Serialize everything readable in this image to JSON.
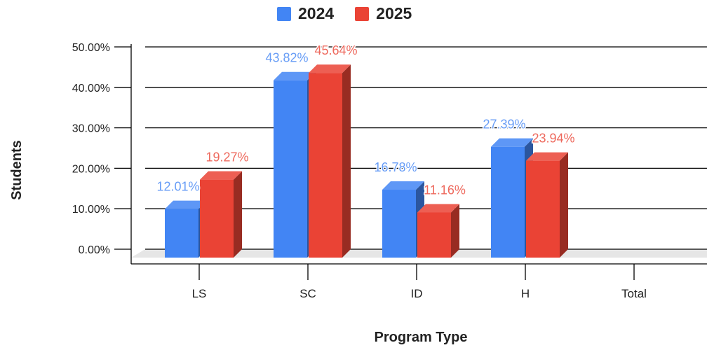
{
  "chart_data": {
    "type": "bar",
    "title": "",
    "xlabel": "Program Type",
    "ylabel": "Students",
    "categories": [
      "LS",
      "SC",
      "ID",
      "H",
      "Total"
    ],
    "series": [
      {
        "name": "2024",
        "color": "#4285f4",
        "values": [
          12.01,
          43.82,
          16.78,
          27.39,
          null
        ],
        "labels": [
          "12.01%",
          "43.82%",
          "16.78%",
          "27.39%",
          ""
        ]
      },
      {
        "name": "2025",
        "color": "#ea4335",
        "values": [
          19.27,
          45.64,
          11.16,
          23.94,
          null
        ],
        "labels": [
          "19.27%",
          "45.64%",
          "11.16%",
          "23.94%",
          ""
        ]
      }
    ],
    "ylim": [
      0,
      50
    ],
    "yticks": [
      "0.00%",
      "10.00%",
      "20.00%",
      "30.00%",
      "40.00%",
      "50.00%"
    ],
    "grid": true,
    "legend_position": "top",
    "style": "3d"
  }
}
